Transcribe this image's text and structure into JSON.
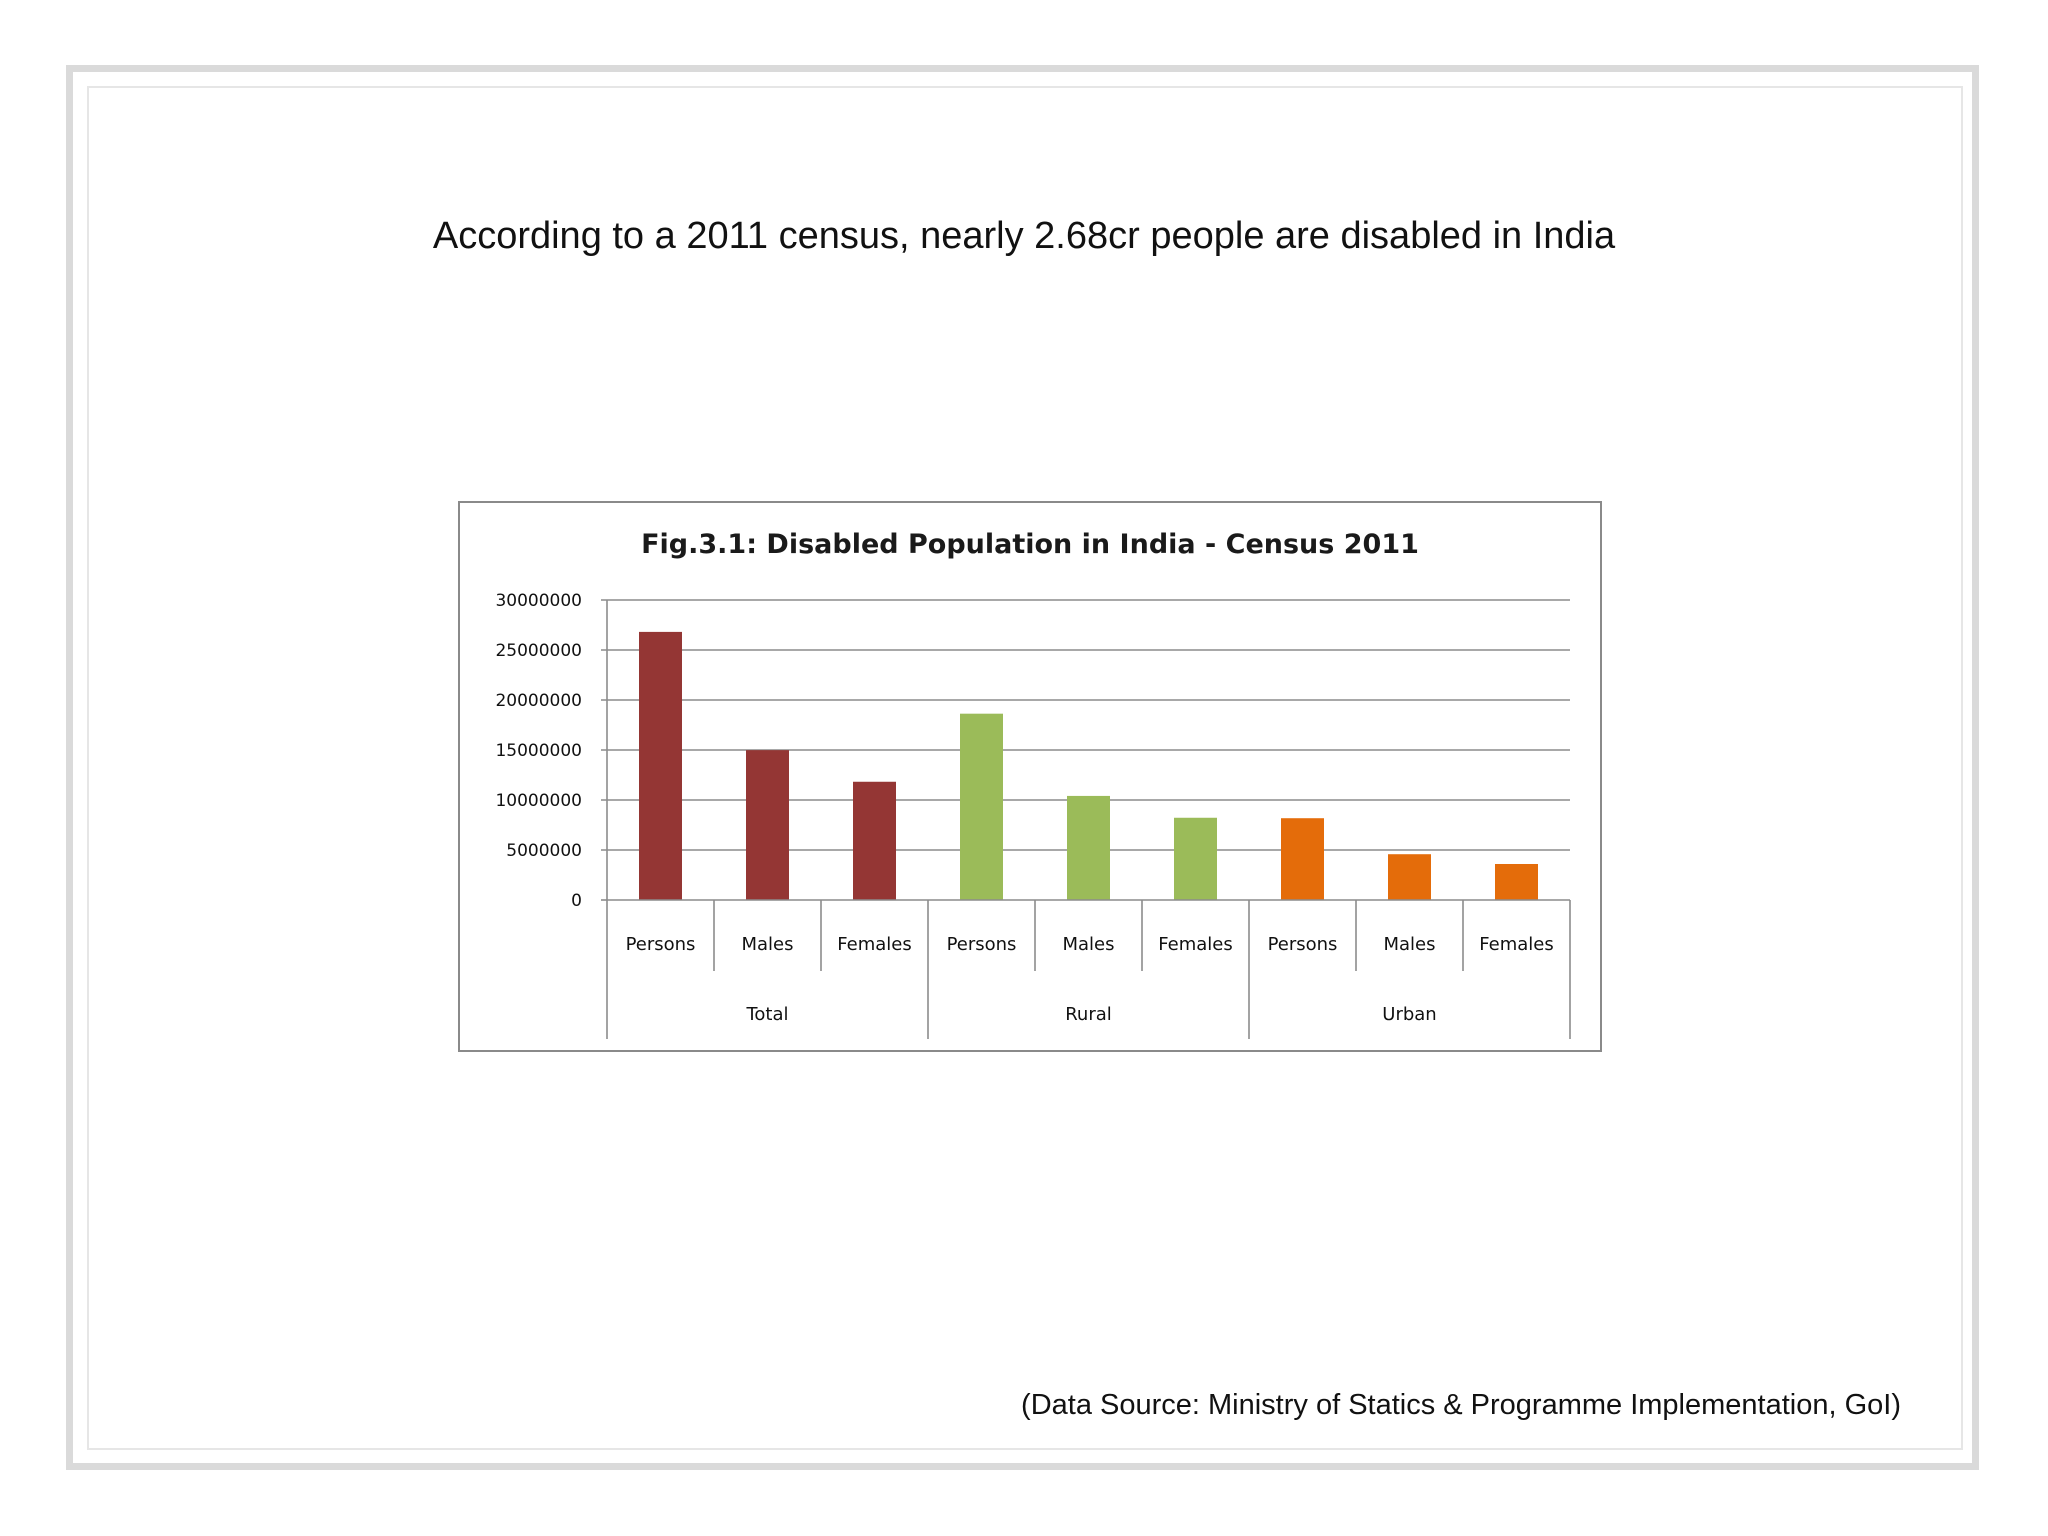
{
  "headline": "According to a 2011 census, nearly 2.68cr people are disabled in India",
  "source_note": "(Data Source: Ministry of Statics & Programme Implementation, GoI)",
  "chart_data": {
    "type": "bar",
    "title": "Fig.3.1: Disabled Population in India - Census 2011",
    "xlabel": "",
    "ylabel": "",
    "ylim": [
      0,
      30000000
    ],
    "yticks": [
      0,
      5000000,
      10000000,
      15000000,
      20000000,
      25000000,
      30000000
    ],
    "ytick_labels": [
      "0",
      "5000000",
      "10000000",
      "15000000",
      "20000000",
      "25000000",
      "30000000"
    ],
    "grid": true,
    "groups": [
      {
        "name": "Total",
        "color": "#943634",
        "categories": [
          "Persons",
          "Males",
          "Females"
        ],
        "values": [
          26810557,
          14986202,
          11824355
        ]
      },
      {
        "name": "Rural",
        "color": "#9bbb59",
        "categories": [
          "Persons",
          "Males",
          "Females"
        ],
        "values": [
          18631921,
          10408168,
          8223753
        ]
      },
      {
        "name": "Urban",
        "color": "#e46c0a",
        "categories": [
          "Persons",
          "Males",
          "Females"
        ],
        "values": [
          8178636,
          4578034,
          3600602
        ]
      }
    ]
  }
}
